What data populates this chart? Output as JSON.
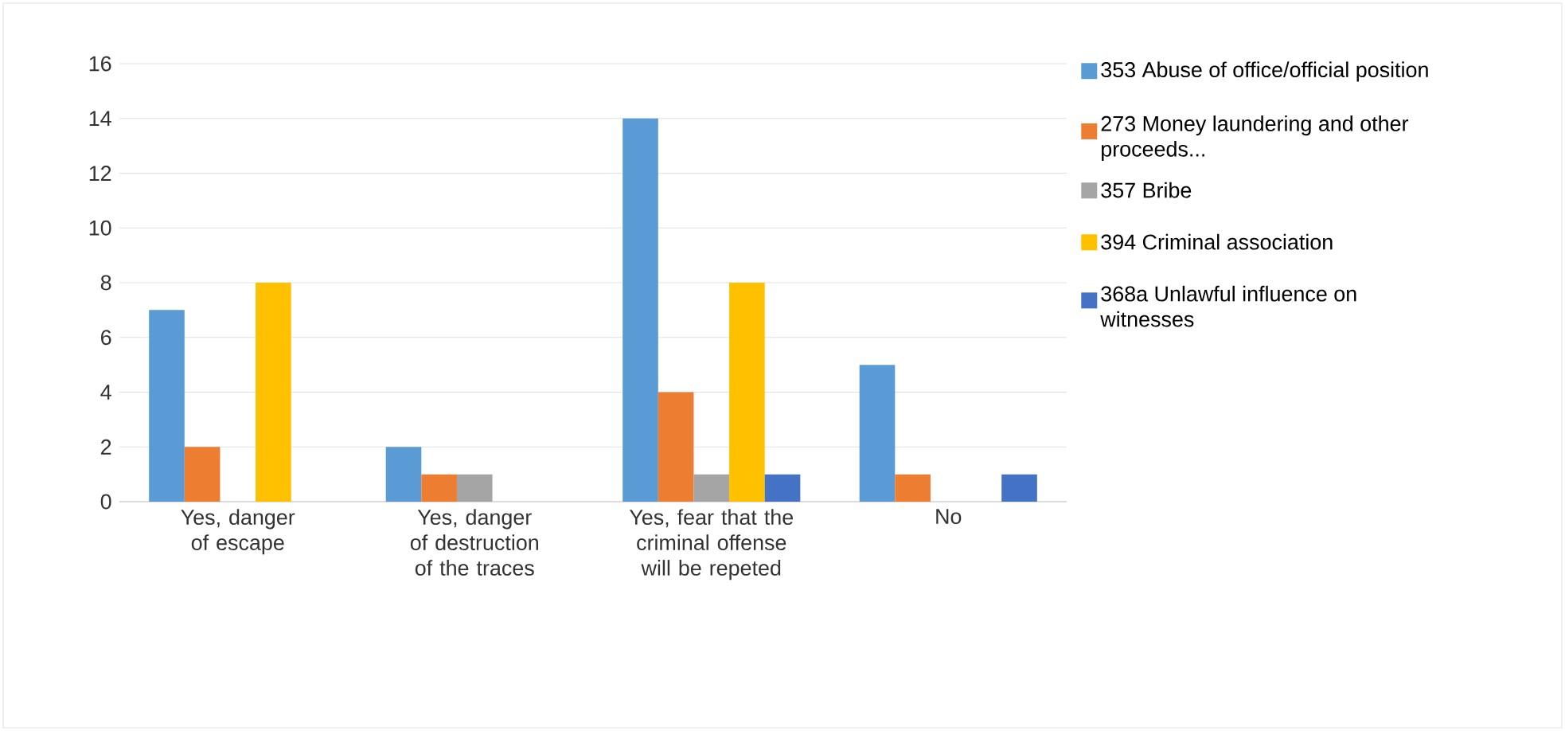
{
  "chart_data": {
    "type": "bar",
    "categories": [
      "Yes, danger of escape",
      "Yes, danger of destruction of the traces",
      "Yes, fear that the criminal offense will be repeted",
      "No"
    ],
    "series": [
      {
        "name": "353 Abuse of office/official position",
        "color": "#5b9bd5",
        "values": [
          7,
          2,
          14,
          5
        ]
      },
      {
        "name": "273 Money laundering and other proceeds...",
        "color": "#ed7d31",
        "values": [
          2,
          1,
          4,
          1
        ]
      },
      {
        "name": "357 Bribe",
        "color": "#a5a5a5",
        "values": [
          0,
          1,
          1,
          0
        ]
      },
      {
        "name": "394 Criminal association",
        "color": "#ffc000",
        "values": [
          8,
          0,
          8,
          0
        ]
      },
      {
        "name": "368a Unlawful influence on witnesses",
        "color": "#4472c4",
        "values": [
          0,
          0,
          1,
          1
        ]
      }
    ],
    "ylim": [
      0,
      16
    ],
    "yticks": [
      0,
      2,
      4,
      6,
      8,
      10,
      12,
      14,
      16
    ],
    "grid": "y",
    "legend": "right"
  }
}
